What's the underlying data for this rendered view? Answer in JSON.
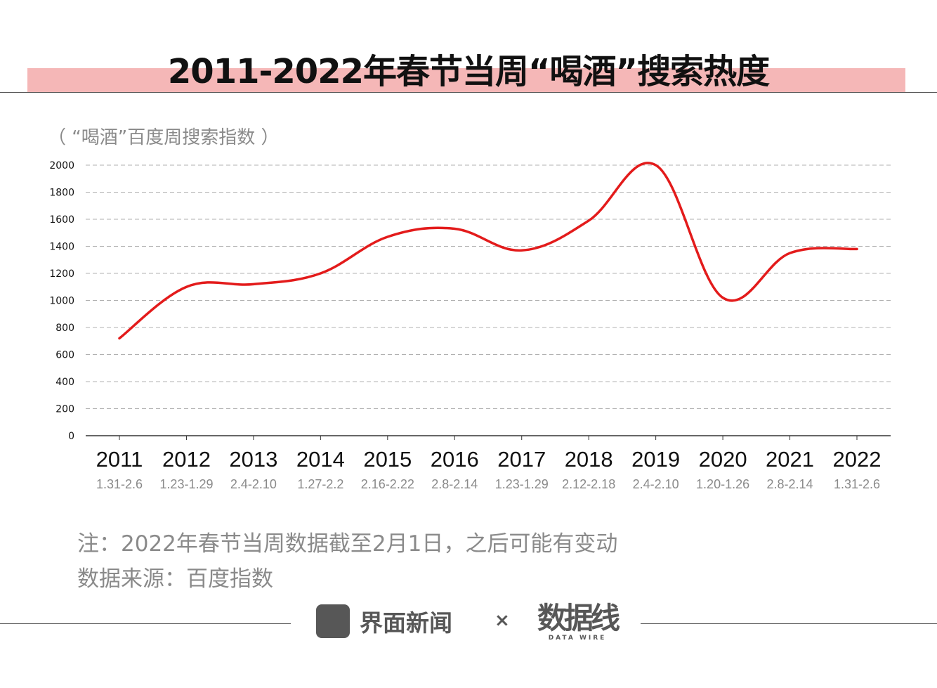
{
  "header": {
    "title": "2011-2022年春节当周“喝酒”搜索热度"
  },
  "chart_unit": "（ “喝酒”百度周搜索指数 ）",
  "notes": {
    "note": "注：2022年春节当周数据截至2月1日，之后可能有变动",
    "source": "数据来源：百度指数"
  },
  "footer": {
    "brand_name": "界面新闻",
    "times": "×",
    "watermark_main": "数据线",
    "watermark_sub": "DATA WIRE"
  },
  "colors": {
    "line": "#e31b1b",
    "band": "#f5b7b7",
    "muted": "#8a8a8a"
  },
  "chart_data": {
    "type": "line",
    "title": "2011-2022年春节当周“喝酒”搜索热度",
    "ylabel": "（ “喝酒”百度周搜索指数 ）",
    "xlabel": "",
    "ylim": [
      0,
      2000
    ],
    "yticks": [
      0,
      200,
      400,
      600,
      800,
      1000,
      1200,
      1400,
      1600,
      1800,
      2000
    ],
    "grid": true,
    "categories": [
      "2011",
      "2012",
      "2013",
      "2014",
      "2015",
      "2016",
      "2017",
      "2018",
      "2019",
      "2020",
      "2021",
      "2022"
    ],
    "date_ranges": [
      "1.31-2.6",
      "1.23-1.29",
      "2.4-2.10",
      "1.27-2.2",
      "2.16-2.22",
      "2.8-2.14",
      "1.23-1.29",
      "2.12-2.18",
      "2.4-2.10",
      "1.20-1.26",
      "2.8-2.14",
      "1.31-2.6"
    ],
    "series": [
      {
        "values": [
          720,
          1100,
          1120,
          1200,
          1470,
          1530,
          1370,
          1590,
          2000,
          1020,
          1350,
          1380
        ]
      }
    ]
  }
}
